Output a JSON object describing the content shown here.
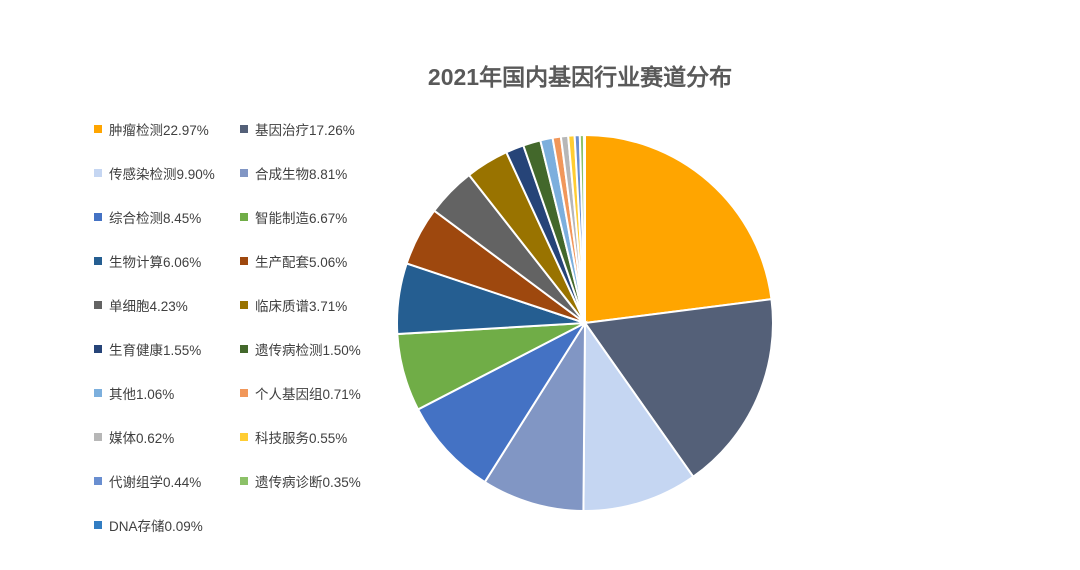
{
  "chart_data": {
    "type": "pie",
    "title": "2021年国内基因行业赛道分布",
    "legend_position": "left",
    "slices": [
      {
        "name": "肿瘤检测",
        "value": 22.97,
        "label": "肿瘤检测22.97%",
        "color": "#FFA500"
      },
      {
        "name": "基因治疗",
        "value": 17.26,
        "label": "基因治疗17.26%",
        "color": "#546078"
      },
      {
        "name": "传感染检测",
        "value": 9.9,
        "label": "传感染检测9.90%",
        "color": "#C5D6F2"
      },
      {
        "name": "合成生物",
        "value": 8.81,
        "label": "合成生物8.81%",
        "color": "#8196C4"
      },
      {
        "name": "综合检测",
        "value": 8.45,
        "label": "综合检测8.45%",
        "color": "#4472C4"
      },
      {
        "name": "智能制造",
        "value": 6.67,
        "label": "智能制造6.67%",
        "color": "#70AD47"
      },
      {
        "name": "生物计算",
        "value": 6.06,
        "label": "生物计算6.06%",
        "color": "#255E91"
      },
      {
        "name": "生产配套",
        "value": 5.06,
        "label": "生产配套5.06%",
        "color": "#9E480E"
      },
      {
        "name": "单细胞",
        "value": 4.23,
        "label": "单细胞4.23%",
        "color": "#636363"
      },
      {
        "name": "临床质谱",
        "value": 3.71,
        "label": "临床质谱3.71%",
        "color": "#997300"
      },
      {
        "name": "生育健康",
        "value": 1.55,
        "label": "生育健康1.55%",
        "color": "#264478"
      },
      {
        "name": "遗传病检测",
        "value": 1.5,
        "label": "遗传病检测1.50%",
        "color": "#43682B"
      },
      {
        "name": "其他",
        "value": 1.06,
        "label": "其他1.06%",
        "color": "#7CAFDD"
      },
      {
        "name": "个人基因组",
        "value": 0.71,
        "label": "个人基因组0.71%",
        "color": "#F1975A"
      },
      {
        "name": "媒体",
        "value": 0.62,
        "label": "媒体0.62%",
        "color": "#B7B7B7"
      },
      {
        "name": "科技服务",
        "value": 0.55,
        "label": "科技服务0.55%",
        "color": "#FFCD33"
      },
      {
        "name": "代谢组学",
        "value": 0.44,
        "label": "代谢组学0.44%",
        "color": "#698ED0"
      },
      {
        "name": "遗传病诊断",
        "value": 0.35,
        "label": "遗传病诊断0.35%",
        "color": "#8CC168"
      },
      {
        "name": "DNA存储",
        "value": 0.09,
        "label": "DNA存储0.09%",
        "color": "#327DC2"
      }
    ]
  }
}
